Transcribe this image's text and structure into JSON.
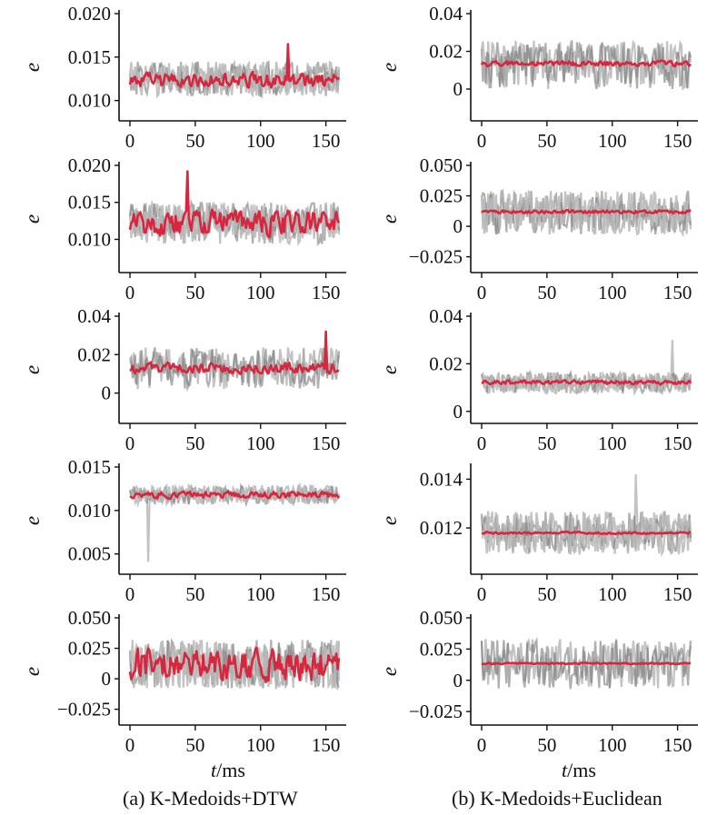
{
  "colors": {
    "medoid": "#d7263d",
    "member_light": "#b8b8b8",
    "member_dark": "#6e6e6e",
    "axis": "#111111"
  },
  "xlabel": {
    "italic": "t",
    "unit": "/ms"
  },
  "captions": {
    "left": "(a) K-Medoids+DTW",
    "right": "(b) K-Medoids+Euclidean"
  },
  "chart_data": [
    {
      "type": "line",
      "panel": "a1",
      "ylabel": "e",
      "xlim": [
        0,
        160
      ],
      "ylim": [
        0.0085,
        0.02
      ],
      "xticks": [
        0,
        50,
        100,
        150
      ],
      "xtick_labels": [
        "0",
        "50",
        "100",
        "150"
      ],
      "yticks": [
        0.01,
        0.015,
        0.02
      ],
      "ytick_labels": [
        "0.010",
        "0.015",
        "0.020"
      ],
      "members": {
        "center": 0.0125,
        "amp": 0.002,
        "count": 3
      },
      "medoid": {
        "center": 0.0123,
        "amp": 0.0011,
        "peak": {
          "x": 121,
          "y": 0.0165
        }
      }
    },
    {
      "type": "line",
      "panel": "a2",
      "ylabel": "e",
      "xlim": [
        0,
        160
      ],
      "ylim": [
        0.0065,
        0.02
      ],
      "xticks": [
        0,
        50,
        100,
        150
      ],
      "xtick_labels": [
        "0",
        "50",
        "100",
        "150"
      ],
      "yticks": [
        0.01,
        0.015,
        0.02
      ],
      "ytick_labels": [
        "0.010",
        "0.015",
        "0.020"
      ],
      "members": {
        "center": 0.0122,
        "amp": 0.0028,
        "count": 3
      },
      "medoid": {
        "center": 0.0122,
        "amp": 0.0022,
        "peak": {
          "x": 44,
          "y": 0.0192
        }
      }
    },
    {
      "type": "line",
      "panel": "a3",
      "ylabel": "e",
      "xlim": [
        0,
        160
      ],
      "ylim": [
        -0.012,
        0.04
      ],
      "xticks": [
        0,
        50,
        100,
        150
      ],
      "xtick_labels": [
        "0",
        "50",
        "100",
        "150"
      ],
      "yticks": [
        0,
        0.02,
        0.04
      ],
      "ytick_labels": [
        "0",
        "0.02",
        "0.04"
      ],
      "members": {
        "center": 0.013,
        "amp": 0.011,
        "count": 2
      },
      "medoid": {
        "center": 0.013,
        "amp": 0.0035,
        "peak": {
          "x": 150,
          "y": 0.032
        }
      }
    },
    {
      "type": "line",
      "panel": "a4",
      "ylabel": "e",
      "xlim": [
        0,
        160
      ],
      "ylim": [
        0.0035,
        0.015
      ],
      "xticks": [
        0,
        50,
        100,
        150
      ],
      "xtick_labels": [
        "0",
        "50",
        "100",
        "150"
      ],
      "yticks": [
        0.005,
        0.01,
        0.015
      ],
      "ytick_labels": [
        "0.005",
        "0.010",
        "0.015"
      ],
      "members": {
        "center": 0.0118,
        "amp": 0.0011,
        "count": 3,
        "dip": {
          "x": 14,
          "y": 0.0041
        }
      },
      "medoid": {
        "center": 0.0118,
        "amp": 0.0005
      }
    },
    {
      "type": "line",
      "panel": "a5",
      "ylabel": "e",
      "xlim": [
        0,
        160
      ],
      "ylim": [
        -0.032,
        0.05
      ],
      "xticks": [
        0,
        50,
        100,
        150
      ],
      "xtick_labels": [
        "0",
        "50",
        "100",
        "150"
      ],
      "yticks": [
        -0.025,
        0,
        0.025,
        0.05
      ],
      "ytick_labels": [
        "−0.025",
        "0",
        "0.025",
        "0.050"
      ],
      "members": {
        "center": 0.012,
        "amp": 0.02,
        "count": 3
      },
      "medoid": {
        "center": 0.012,
        "amp": 0.017
      }
    },
    {
      "type": "line",
      "panel": "b1",
      "ylabel": "e",
      "xlim": [
        0,
        160
      ],
      "ylim": [
        -0.013,
        0.04
      ],
      "xticks": [
        0,
        50,
        100,
        150
      ],
      "xtick_labels": [
        "0",
        "50",
        "100",
        "150"
      ],
      "yticks": [
        0,
        0.02,
        0.04
      ],
      "ytick_labels": [
        "0",
        "0.02",
        "0.04"
      ],
      "members": {
        "center": 0.013,
        "amp": 0.013,
        "count": 2
      },
      "medoid": {
        "center": 0.0135,
        "amp": 0.0018
      }
    },
    {
      "type": "line",
      "panel": "b2",
      "ylabel": "e",
      "xlim": [
        0,
        160
      ],
      "ylim": [
        -0.032,
        0.05
      ],
      "xticks": [
        0,
        50,
        100,
        150
      ],
      "xtick_labels": [
        "0",
        "50",
        "100",
        "150"
      ],
      "yticks": [
        -0.025,
        0,
        0.025,
        0.05
      ],
      "ytick_labels": [
        "−0.025",
        "0",
        "0.025",
        "0.050"
      ],
      "members": {
        "center": 0.011,
        "amp": 0.018,
        "count": 3
      },
      "medoid": {
        "center": 0.012,
        "amp": 0.0018
      }
    },
    {
      "type": "line",
      "panel": "b3",
      "ylabel": "e",
      "xlim": [
        0,
        160
      ],
      "ylim": [
        -0.002,
        0.04
      ],
      "xticks": [
        0,
        50,
        100,
        150
      ],
      "xtick_labels": [
        "0",
        "50",
        "100",
        "150"
      ],
      "yticks": [
        0,
        0.02,
        0.04
      ],
      "ytick_labels": [
        "0",
        "0.02",
        "0.04"
      ],
      "members": {
        "center": 0.012,
        "amp": 0.0045,
        "count": 3,
        "spike": {
          "x": 146,
          "y": 0.03
        }
      },
      "medoid": {
        "center": 0.0122,
        "amp": 0.0012
      }
    },
    {
      "type": "line",
      "panel": "b4",
      "ylabel": "e",
      "xlim": [
        0,
        160
      ],
      "ylim": [
        0.0104,
        0.0145
      ],
      "xticks": [
        0,
        50,
        100,
        150
      ],
      "xtick_labels": [
        "0",
        "50",
        "100",
        "150"
      ],
      "yticks": [
        0.012,
        0.014
      ],
      "ytick_labels": [
        "0.012",
        "0.014"
      ],
      "members": {
        "center": 0.0118,
        "amp": 0.0009,
        "count": 3,
        "spike": {
          "x": 118,
          "y": 0.0142
        }
      },
      "medoid": {
        "center": 0.0118,
        "amp": 6e-05
      }
    },
    {
      "type": "line",
      "panel": "b5",
      "ylabel": "e",
      "xlim": [
        0,
        160
      ],
      "ylim": [
        -0.03,
        0.05
      ],
      "xticks": [
        0,
        50,
        100,
        150
      ],
      "xtick_labels": [
        "0",
        "50",
        "100",
        "150"
      ],
      "yticks": [
        -0.025,
        0,
        0.025,
        0.05
      ],
      "ytick_labels": [
        "−0.025",
        "0",
        "0.025",
        "0.050"
      ],
      "members": {
        "center": 0.013,
        "amp": 0.02,
        "count": 2
      },
      "medoid": {
        "center": 0.0135,
        "amp": 0.0008
      }
    }
  ]
}
